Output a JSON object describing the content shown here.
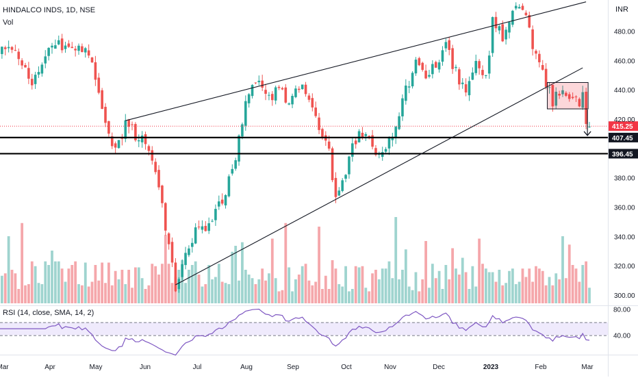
{
  "header": {
    "symbol_line": "HINDALCO INDS, 1D, NSE",
    "volume_label": "Vol",
    "currency": "INR"
  },
  "chart_data": {
    "type": "candlestick",
    "y_range": [
      293,
      505
    ],
    "price_ticks": [
      300,
      320,
      340,
      360,
      380,
      400,
      420,
      440,
      460,
      480
    ],
    "price_tick_labels": [
      "300.00",
      "320.00",
      "340.00",
      "360.00",
      "380.00",
      "",
      "420.00",
      "440.00",
      "460.00",
      "480.00"
    ],
    "x_labels": [
      "Mar",
      "Apr",
      "May",
      "Jun",
      "Jul",
      "Aug",
      "Sep",
      "Oct",
      "Nov",
      "Dec",
      "2023",
      "Feb",
      "Mar"
    ],
    "levels": [
      {
        "value": 415.25,
        "label": "415.25",
        "color": "#f23645",
        "style": "dotted"
      },
      {
        "value": 407.45,
        "label": "407.45",
        "color": "#000000",
        "style": "solid"
      },
      {
        "value": 396.45,
        "label": "396.45",
        "color": "#000000",
        "style": "solid"
      }
    ],
    "trendlines": [
      {
        "from": [
          38,
          419
        ],
        "to": [
          176,
          500
        ]
      },
      {
        "from": [
          53,
          307
        ],
        "to": [
          175,
          455
        ]
      }
    ],
    "consolidation_box": {
      "i0": 165,
      "i1": 176,
      "low": 427,
      "high": 445
    },
    "candles": [],
    "volumes": [],
    "rsi": {
      "label": "RSI (14, close, SMA, 14, 2)",
      "range": [
        10,
        85
      ],
      "ticks": [
        40,
        80
      ],
      "tick_labels": [
        "40.00",
        "80.00"
      ],
      "band": [
        40,
        60
      ]
    },
    "path_anchors": [
      [
        0,
        470
      ],
      [
        5,
        470
      ],
      [
        10,
        440
      ],
      [
        15,
        470
      ],
      [
        22,
        470
      ],
      [
        25,
        470
      ],
      [
        28,
        460
      ],
      [
        31,
        430
      ],
      [
        34,
        400
      ],
      [
        37,
        410
      ],
      [
        38,
        419
      ],
      [
        41,
        410
      ],
      [
        44,
        405
      ],
      [
        46,
        395
      ],
      [
        48,
        370
      ],
      [
        51,
        335
      ],
      [
        53,
        307
      ],
      [
        56,
        330
      ],
      [
        59,
        342
      ],
      [
        62,
        348
      ],
      [
        65,
        356
      ],
      [
        68,
        372
      ],
      [
        71,
        395
      ],
      [
        73,
        420
      ],
      [
        75,
        440
      ],
      [
        78,
        446
      ],
      [
        81,
        432
      ],
      [
        84,
        440
      ],
      [
        87,
        428
      ],
      [
        90,
        442
      ],
      [
        93,
        435
      ],
      [
        96,
        415
      ],
      [
        99,
        400
      ],
      [
        101,
        365
      ],
      [
        103,
        375
      ],
      [
        105,
        395
      ],
      [
        108,
        408
      ],
      [
        111,
        404
      ],
      [
        113,
        398
      ],
      [
        116,
        400
      ],
      [
        119,
        412
      ],
      [
        122,
        440
      ],
      [
        125,
        457
      ],
      [
        128,
        448
      ],
      [
        131,
        456
      ],
      [
        134,
        470
      ],
      [
        137,
        452
      ],
      [
        140,
        438
      ],
      [
        143,
        461
      ],
      [
        146,
        446
      ],
      [
        148,
        486
      ],
      [
        151,
        476
      ],
      [
        154,
        493
      ],
      [
        156,
        498
      ],
      [
        158,
        492
      ],
      [
        160,
        472
      ],
      [
        162,
        459
      ],
      [
        164,
        445
      ],
      [
        166,
        432
      ],
      [
        168,
        440
      ],
      [
        170,
        433
      ],
      [
        172,
        437
      ],
      [
        174,
        433
      ],
      [
        175,
        437
      ],
      [
        176,
        415
      ]
    ]
  }
}
